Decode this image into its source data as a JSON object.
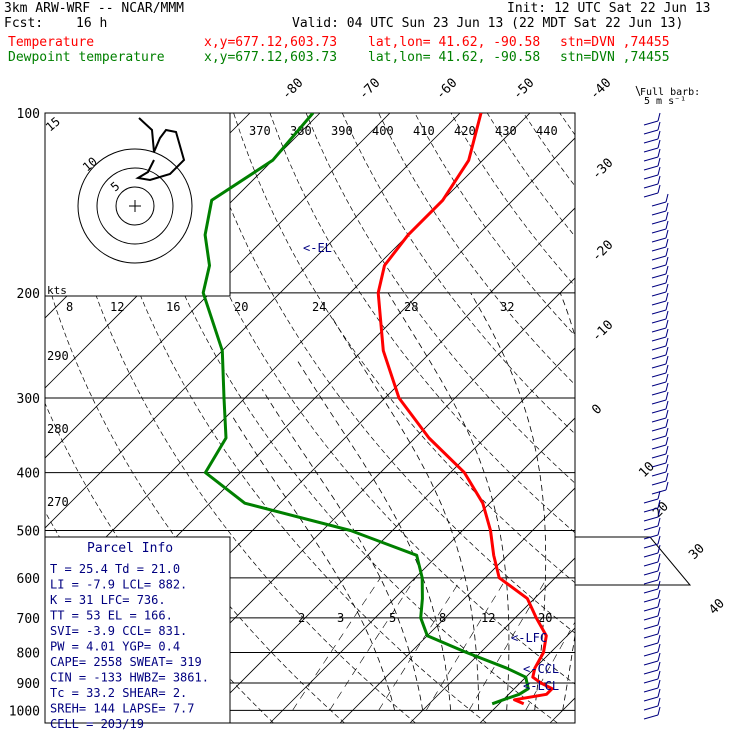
{
  "header": {
    "model": "3km ARW-WRF -- NCAR/MMM",
    "init": "Init: 12 UTC Sat 22 Jun 13",
    "fcst_label": "Fcst:",
    "fcst_value": "16 h",
    "valid": "Valid: 04 UTC Sun 23 Jun 13 (22 MDT Sat 22 Jun 13)",
    "temp_label": "Temperature",
    "dew_label": "Dewpoint temperature",
    "loc_xy": "x,y=677.12,603.73",
    "loc_latlon": "lat,lon= 41.62, -90.58",
    "loc_stn": "stn=DVN ,74455",
    "barb_title": "Full barb:",
    "barb_unit": "5 m s⁻¹",
    "kts_label": "kts"
  },
  "colors": {
    "temperature": "#ff0000",
    "dewpoint": "#008000",
    "text": "#000080",
    "grid": "#000000"
  },
  "parcel": {
    "title": "Parcel Info",
    "rows": [
      "T  =   25.4 Td =  21.0",
      "LI =   -7.9 LCL=  882.",
      "K  =     31 LFC=  736.",
      "TT =     53 EL =  166.",
      "SVI=   -3.9 CCL=  831.",
      "PW =   4.01 YGP=   0.4",
      "CAPE=  2558 SWEAT=  319",
      "CIN =  -133 HWBZ= 3861.",
      "Tc =   33.2 SHEAR=   2.",
      "SREH=   144 LAPSE=  7.7",
      "CELL = 203/19"
    ]
  },
  "annotations": {
    "el": "<-EL",
    "lfc": "<-LFC",
    "ccl": "<-CCL",
    "lcl": "<-LCL"
  },
  "hodograph": {
    "ring_labels": [
      "5",
      "10",
      "15"
    ],
    "kts_labels": [
      "8",
      "12",
      "16",
      "20",
      "24",
      "28",
      "32"
    ]
  },
  "chart_data": {
    "type": "line",
    "title": "",
    "pressure_ticks": [
      100,
      200,
      300,
      400,
      500,
      600,
      700,
      800,
      900,
      1000
    ],
    "isotherm_labels_top": [
      "-80",
      "-70",
      "-60",
      "-50",
      "-40"
    ],
    "isotherm_labels_right": [
      "-30",
      "-20",
      "-10",
      "0",
      "10",
      "20",
      "30",
      "40"
    ],
    "theta_labels": [
      "370",
      "380",
      "390",
      "400",
      "410",
      "420",
      "430",
      "440"
    ],
    "theta_left_labels": [
      "290",
      "280",
      "270"
    ],
    "mixing_ratio_labels": [
      "2",
      "3",
      "5",
      "8",
      "12",
      "20"
    ],
    "series": [
      {
        "name": "Temperature",
        "p": [
          100,
          120,
          140,
          160,
          180,
          200,
          250,
          300,
          350,
          400,
          450,
          500,
          550,
          600,
          650,
          700,
          750,
          800,
          850,
          880,
          900,
          920,
          940,
          960,
          975
        ],
        "t": [
          -67,
          -62,
          -60,
          -60,
          -59,
          -56,
          -47,
          -38,
          -28,
          -18,
          -11,
          -6,
          -2,
          2,
          9,
          13,
          17,
          19,
          20,
          21,
          23,
          25.4,
          25.4,
          21.6,
          23.5
        ]
      },
      {
        "name": "Dewpoint temperature",
        "p": [
          100,
          120,
          140,
          160,
          180,
          200,
          250,
          300,
          350,
          400,
          450,
          500,
          550,
          600,
          650,
          700,
          750,
          800,
          850,
          880,
          900,
          920,
          940,
          960,
          975
        ],
        "td": [
          -91,
          -90,
          -93,
          -89,
          -84,
          -81,
          -70,
          -63,
          -57,
          -55,
          -45,
          -26,
          -13,
          -9,
          -6,
          -3.5,
          0,
          8,
          16,
          20,
          21,
          22,
          21.5,
          20,
          19
        ]
      }
    ]
  }
}
